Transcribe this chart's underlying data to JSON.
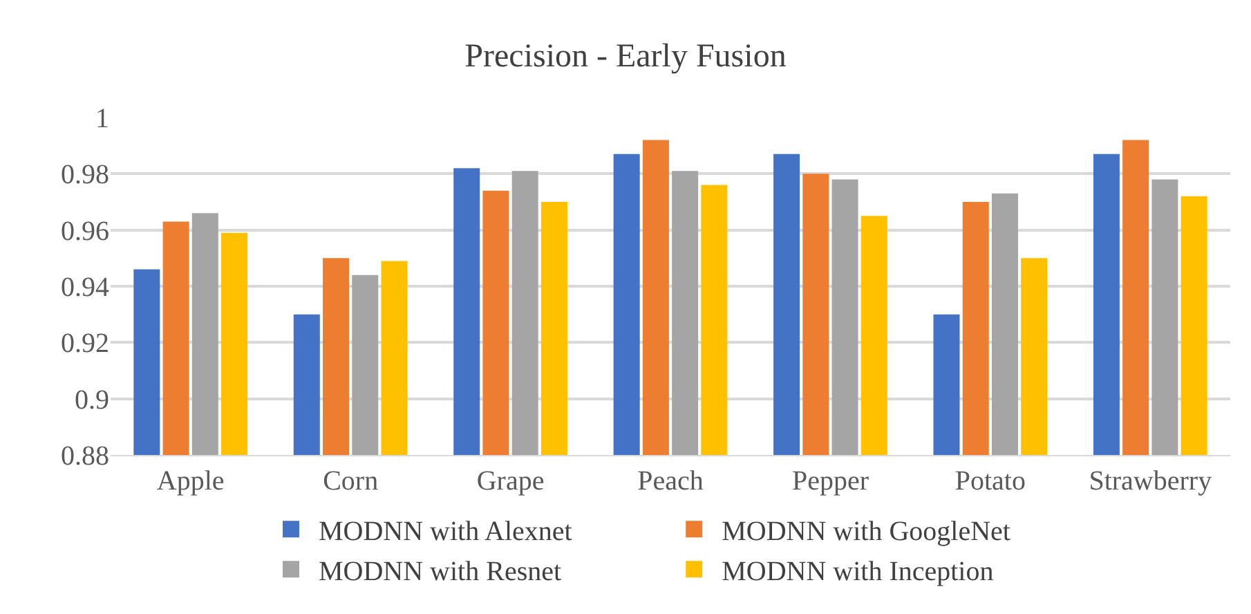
{
  "chart_data": {
    "type": "bar",
    "title": "Precision - Early Fusion",
    "categories": [
      "Apple",
      "Corn",
      "Grape",
      "Peach",
      "Pepper",
      "Potato",
      "Strawberry"
    ],
    "series": [
      {
        "name": "MODNN with Alexnet",
        "color": "#4472c4",
        "values": [
          0.946,
          0.93,
          0.982,
          0.987,
          0.987,
          0.93,
          0.987
        ]
      },
      {
        "name": "MODNN with GoogleNet",
        "color": "#ed7d31",
        "values": [
          0.963,
          0.95,
          0.974,
          0.992,
          0.98,
          0.97,
          0.992
        ]
      },
      {
        "name": "MODNN with Resnet",
        "color": "#a5a5a5",
        "values": [
          0.966,
          0.944,
          0.981,
          0.981,
          0.978,
          0.973,
          0.978
        ]
      },
      {
        "name": "MODNN with Inception",
        "color": "#ffc000",
        "values": [
          0.959,
          0.949,
          0.97,
          0.976,
          0.965,
          0.95,
          0.972
        ]
      }
    ],
    "ylim": [
      0.88,
      1.0
    ],
    "yticks": [
      0.88,
      0.9,
      0.92,
      0.94,
      0.96,
      0.98,
      1
    ],
    "grid": "y",
    "legend": "bottom"
  }
}
